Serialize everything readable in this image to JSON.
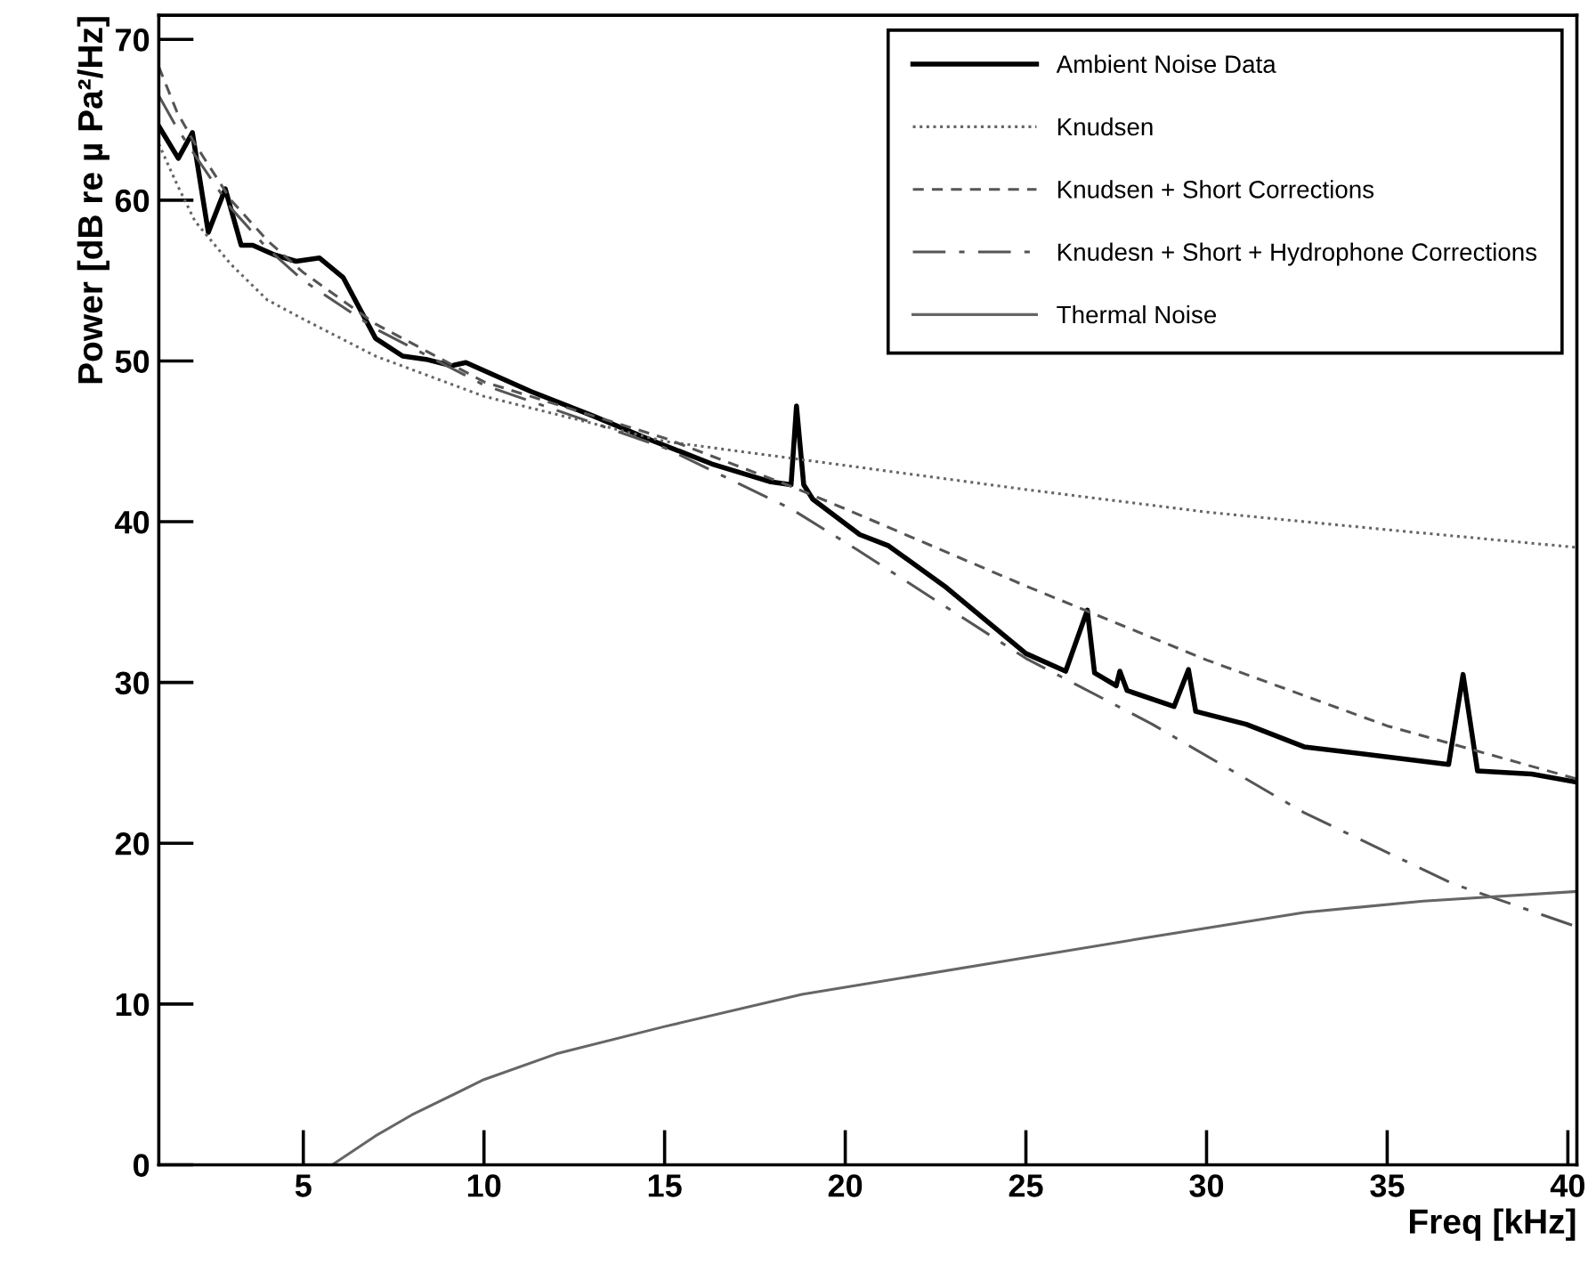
{
  "chart_data": {
    "type": "line",
    "xlabel": "Freq [kHz]",
    "ylabel": "Power [dB re µ Pa²/Hz]",
    "xlim": [
      1,
      40.25
    ],
    "ylim": [
      0,
      71.5
    ],
    "xticks": [
      5,
      10,
      15,
      20,
      25,
      30,
      35,
      40
    ],
    "yticks": [
      0,
      10,
      20,
      30,
      40,
      50,
      60,
      70
    ],
    "grid": false,
    "legend": "top right",
    "series": [
      {
        "name": "Ambient Noise Data",
        "color": "#000000",
        "line_style": "solid",
        "x": [
          1.0,
          1.54,
          1.93,
          2.37,
          2.84,
          3.28,
          3.6,
          4.2,
          4.8,
          5.45,
          6.1,
          7.0,
          7.75,
          8.4,
          9.1,
          9.5,
          11.3,
          13.0,
          14.6,
          16.3,
          17.9,
          18.5,
          18.65,
          18.85,
          19.1,
          20.4,
          21.2,
          22.8,
          25.0,
          26.1,
          26.7,
          26.9,
          27.5,
          27.6,
          27.8,
          29.1,
          29.5,
          29.7,
          31.1,
          32.7,
          34.9,
          36.7,
          37.1,
          37.5,
          39.0,
          40.25
        ],
        "values": [
          64.6,
          62.6,
          64.2,
          58.0,
          60.7,
          57.2,
          57.2,
          56.6,
          56.2,
          56.4,
          55.2,
          51.4,
          50.3,
          50.1,
          49.7,
          49.9,
          48.1,
          46.6,
          45.1,
          43.6,
          42.5,
          42.3,
          47.2,
          42.3,
          41.4,
          39.2,
          38.5,
          35.9,
          31.8,
          30.7,
          34.5,
          30.6,
          29.8,
          30.7,
          29.5,
          28.5,
          30.8,
          28.2,
          27.4,
          26.0,
          25.4,
          24.9,
          30.5,
          24.5,
          24.3,
          23.8
        ]
      },
      {
        "name": "Knudsen",
        "color": "#666666",
        "line_style": "dotted",
        "x": [
          1,
          1.5,
          2,
          3,
          4,
          5,
          7,
          10,
          15,
          20,
          25,
          30,
          35,
          40.25
        ],
        "values": [
          63.5,
          61,
          58.7,
          56,
          53.8,
          52.6,
          50.3,
          47.8,
          45,
          43.5,
          42,
          40.6,
          39.5,
          38.4
        ]
      },
      {
        "name": "Knudsen + Short Corrections",
        "color": "#555555",
        "line_style": "dashed",
        "x": [
          1,
          1.5,
          2,
          3,
          4,
          5,
          7,
          10,
          15,
          18.5,
          20,
          25,
          30,
          35,
          40.25
        ],
        "values": [
          68.3,
          65.5,
          63.5,
          60,
          57.5,
          55.5,
          52.3,
          48.7,
          45.2,
          42.2,
          40.8,
          36.0,
          31.4,
          27.3,
          24.0
        ]
      },
      {
        "name": "Knudesn + Short + Hydrophone Corrections",
        "color": "#555555",
        "line_style": "dashdot",
        "x": [
          1,
          1.5,
          2,
          3,
          4,
          5,
          7,
          10,
          15,
          18.5,
          20.3,
          25,
          28.5,
          32.7,
          36.8,
          40.25
        ],
        "values": [
          66.5,
          64.5,
          62.8,
          59.5,
          57,
          55,
          52,
          48.5,
          44.6,
          40.8,
          38.3,
          31.5,
          27.4,
          21.9,
          17.5,
          14.8
        ]
      },
      {
        "name": "Thermal Noise",
        "color": "#666666",
        "line_style": "solid",
        "x": [
          5.8,
          7,
          8,
          10,
          12,
          15,
          18.8,
          24.5,
          28,
          32.7,
          36,
          40.25
        ],
        "values": [
          0,
          1.8,
          3.1,
          5.3,
          6.9,
          8.6,
          10.6,
          12.7,
          14.0,
          15.7,
          16.4,
          17.0
        ]
      }
    ]
  }
}
